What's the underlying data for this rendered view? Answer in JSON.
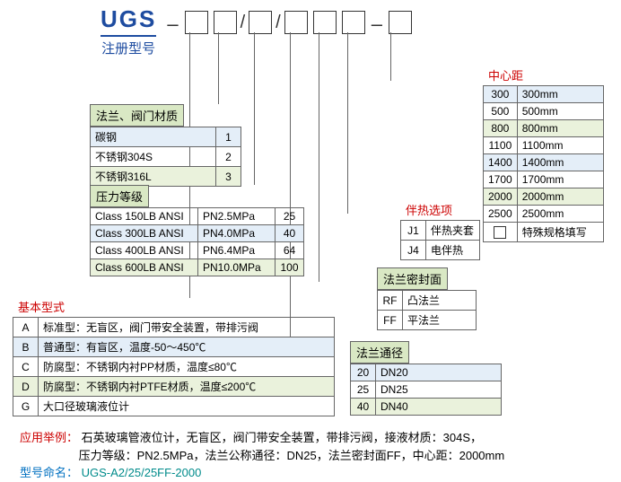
{
  "header": {
    "main": "UGS",
    "sub": "注册型号"
  },
  "center": {
    "title": "中心距",
    "rows": [
      {
        "code": "300",
        "val": "300mm",
        "tint": "row-tint1"
      },
      {
        "code": "500",
        "val": "500mm",
        "tint": ""
      },
      {
        "code": "800",
        "val": "800mm",
        "tint": "row-tint2"
      },
      {
        "code": "1100",
        "val": "1100mm",
        "tint": ""
      },
      {
        "code": "1400",
        "val": "1400mm",
        "tint": "row-tint1"
      },
      {
        "code": "1700",
        "val": "1700mm",
        "tint": ""
      },
      {
        "code": "2000",
        "val": "2000mm",
        "tint": "row-tint2"
      },
      {
        "code": "2500",
        "val": "2500mm",
        "tint": ""
      }
    ],
    "special": "特殊规格填写"
  },
  "material": {
    "title": "法兰、阀门材质",
    "rows": [
      {
        "name": "碳钢",
        "code": "1",
        "tint": "row-tint1"
      },
      {
        "name": "不锈钢304S",
        "code": "2",
        "tint": ""
      },
      {
        "name": "不锈钢316L",
        "code": "3",
        "tint": "row-tint2"
      }
    ]
  },
  "pressure": {
    "title": "压力等级",
    "rows": [
      {
        "c1": "Class 150LB ANSI",
        "c2": "PN2.5MPa",
        "code": "25",
        "tint": ""
      },
      {
        "c1": "Class 300LB ANSI",
        "c2": "PN4.0MPa",
        "code": "40",
        "tint": "row-tint1"
      },
      {
        "c1": "Class 400LB ANSI",
        "c2": "PN6.4MPa",
        "code": "64",
        "tint": ""
      },
      {
        "c1": "Class 600LB ANSI",
        "c2": "PN10.0MPa",
        "code": "100",
        "tint": "row-tint2"
      }
    ]
  },
  "heat": {
    "title": "伴热选项",
    "rows": [
      {
        "code": "J1",
        "val": "伴热夹套"
      },
      {
        "code": "J4",
        "val": "电伴热"
      }
    ]
  },
  "seal": {
    "title": "法兰密封面",
    "rows": [
      {
        "code": "RF",
        "val": "凸法兰"
      },
      {
        "code": "FF",
        "val": "平法兰"
      }
    ]
  },
  "basic": {
    "title": "基本型式",
    "rows": [
      {
        "code": "A",
        "val": "标准型：无盲区，阀门带安全装置，带排污阀",
        "tint": ""
      },
      {
        "code": "B",
        "val": "普通型：有盲区，温度-50～450℃",
        "tint": "row-tint1"
      },
      {
        "code": "C",
        "val": "防腐型：不锈钢内衬PP材质，温度≤80℃",
        "tint": ""
      },
      {
        "code": "D",
        "val": "防腐型：不锈钢内衬PTFE材质，温度≤200℃",
        "tint": "row-tint2"
      },
      {
        "code": "G",
        "val": "大口径玻璃液位计",
        "tint": ""
      }
    ]
  },
  "dn": {
    "title": "法兰通径",
    "rows": [
      {
        "code": "20",
        "val": "DN20",
        "tint": "row-tint1"
      },
      {
        "code": "25",
        "val": "DN25",
        "tint": ""
      },
      {
        "code": "40",
        "val": "DN40",
        "tint": "row-tint2"
      }
    ]
  },
  "example": {
    "label": "应用举例：",
    "line1": "石英玻璃管液位计，无盲区，阀门带安全装置，带排污阀，接液材质：304S，",
    "line2": "压力等级：PN2.5MPa，法兰公称通径：DN25，法兰密封面FF，中心距：2000mm",
    "name_label": "型号命名：",
    "name_value": "UGS-A2/25/25FF-2000"
  }
}
